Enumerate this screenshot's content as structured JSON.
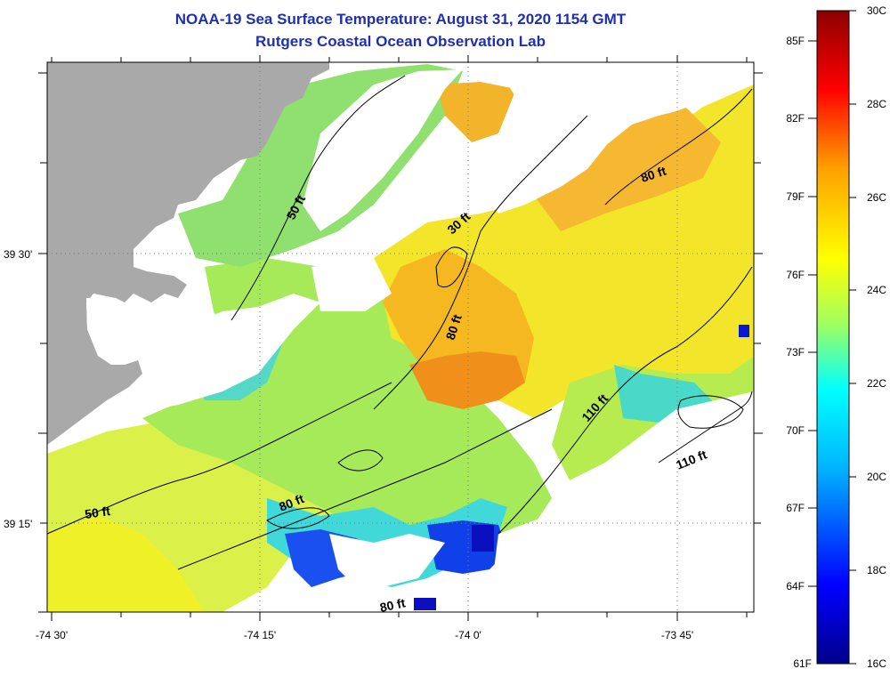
{
  "header": {
    "title": "NOAA-19 Sea Surface Temperature:  August 31, 2020 1154 GMT",
    "subtitle": "Rutgers Coastal Ocean Observation Lab"
  },
  "axes": {
    "x_ticks": [
      "-74 30'",
      "-74 15'",
      "-74 0'",
      "-73 45'"
    ],
    "y_ticks": [
      "39 30'",
      "39 15'"
    ]
  },
  "contour_labels": [
    "50 ft",
    "50 ft",
    "30 ft",
    "80 ft",
    "80 ft",
    "80 ft",
    "80 ft",
    "110 ft",
    "110 ft"
  ],
  "colorbar": {
    "fahrenheit_labels": [
      "85F",
      "82F",
      "79F",
      "76F",
      "73F",
      "70F",
      "67F",
      "64F",
      "61F"
    ],
    "celsius_labels": [
      "30C",
      "28C",
      "26C",
      "24C",
      "22C",
      "20C",
      "18C",
      "16C"
    ],
    "colors": [
      "#00008b",
      "#0000ff",
      "#00a0ff",
      "#00ffff",
      "#7fff7f",
      "#ffff00",
      "#ff9f00",
      "#ff0000",
      "#8b0000"
    ]
  },
  "colors": {
    "land": "#a9a9a9",
    "no_data": "#ffffff",
    "title": "#1f2fb4"
  }
}
